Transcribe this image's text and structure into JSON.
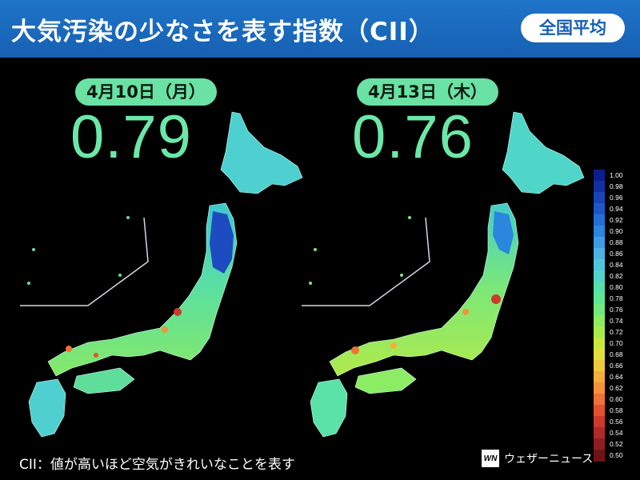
{
  "header": {
    "title": "大気汚染の少なさを表す指数（CII）",
    "badge": "全国平均"
  },
  "panels": [
    {
      "date": "4月10日（月）",
      "value": "0.79"
    },
    {
      "date": "4月13日（木）",
      "value": "0.76"
    }
  ],
  "legend": {
    "labels": [
      "1.00",
      "0.98",
      "0.96",
      "0.94",
      "0.92",
      "0.90",
      "0.88",
      "0.86",
      "0.84",
      "0.82",
      "0.80",
      "0.78",
      "0.76",
      "0.74",
      "0.72",
      "0.70",
      "0.68",
      "0.66",
      "0.64",
      "0.62",
      "0.60",
      "0.58",
      "0.56",
      "0.54",
      "0.52",
      "0.50"
    ],
    "colors": [
      "#0a1f8c",
      "#12309f",
      "#1a44b6",
      "#1d58c8",
      "#2170d6",
      "#2b86de",
      "#3d9ce4",
      "#4cb2e4",
      "#4ec6dc",
      "#4fd6c8",
      "#55e0ac",
      "#5ee696",
      "#72ea7c",
      "#8cec64",
      "#aaec4a",
      "#c8ea3a",
      "#e2e03a",
      "#f0c83c",
      "#f4ae3c",
      "#f4923a",
      "#ee7236",
      "#e25230",
      "#cc3a2c",
      "#b02a2a",
      "#8e1e24",
      "#6e1414"
    ]
  },
  "footnote": "CII：値が高いほど空気がきれいなことを表す",
  "brand": {
    "logo": "WN",
    "name": "ウェザーニュース"
  }
}
